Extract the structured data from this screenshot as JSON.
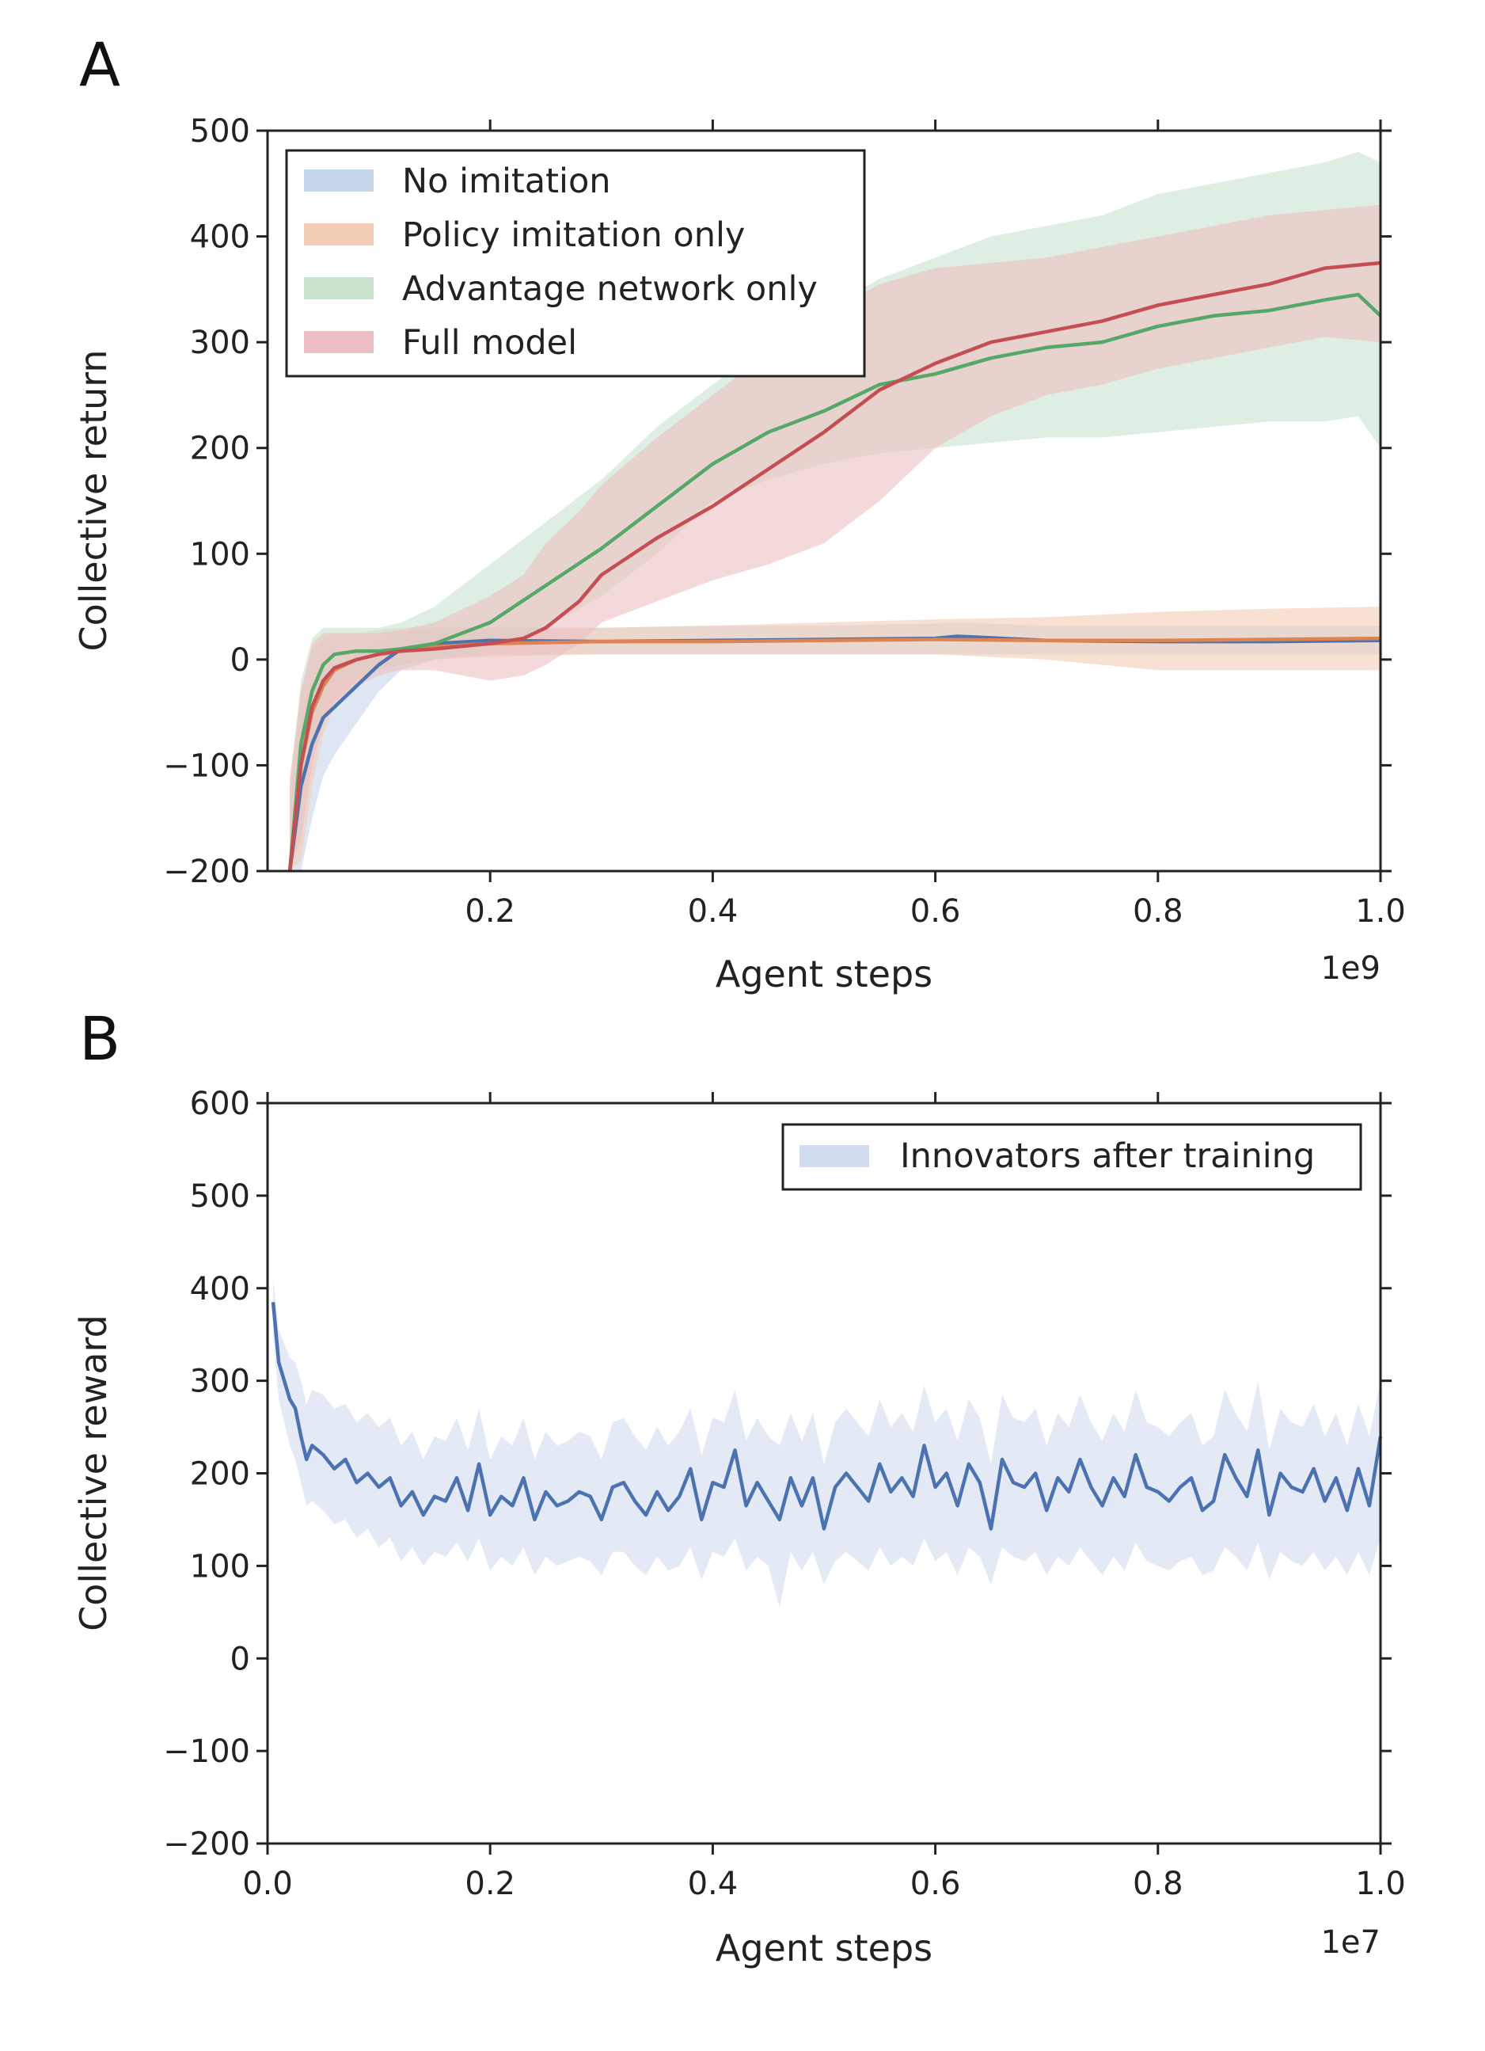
{
  "chart_data": [
    {
      "panel": "A",
      "type": "line",
      "xlabel": "Agent steps",
      "ylabel": "Collective return",
      "x_scale_label": "1e9",
      "xlim": [
        0.0,
        1.0
      ],
      "ylim": [
        -200,
        500
      ],
      "xticks": [
        0.2,
        0.4,
        0.6,
        0.8,
        1.0
      ],
      "xtick_labels": [
        "0.2",
        "0.4",
        "0.6",
        "0.8",
        "1.0"
      ],
      "yticks": [
        -200,
        -100,
        0,
        100,
        200,
        300,
        400,
        500
      ],
      "ytick_labels": [
        "−200",
        "−100",
        "0",
        "100",
        "200",
        "300",
        "400",
        "500"
      ],
      "grid": false,
      "legend_position": "top-left",
      "series": [
        {
          "name": "No imitation",
          "color": "#4c72b0",
          "band_color": "#c6d6ea",
          "x": [
            0.02,
            0.03,
            0.04,
            0.05,
            0.06,
            0.07,
            0.08,
            0.09,
            0.1,
            0.12,
            0.15,
            0.2,
            0.3,
            0.4,
            0.5,
            0.6,
            0.62,
            0.7,
            0.8,
            0.9,
            1.0
          ],
          "y": [
            -200,
            -120,
            -80,
            -55,
            -45,
            -35,
            -25,
            -15,
            -5,
            10,
            15,
            18,
            17,
            18,
            19,
            20,
            22,
            18,
            17,
            17,
            18
          ],
          "lower": [
            -260,
            -200,
            -150,
            -110,
            -90,
            -75,
            -60,
            -45,
            -30,
            -10,
            0,
            5,
            5,
            5,
            5,
            5,
            5,
            5,
            5,
            5,
            5
          ],
          "upper": [
            -140,
            -50,
            -20,
            -10,
            -5,
            0,
            5,
            10,
            15,
            25,
            30,
            30,
            30,
            32,
            32,
            34,
            35,
            32,
            32,
            32,
            32
          ]
        },
        {
          "name": "Policy imitation only",
          "color": "#dd8452",
          "band_color": "#f3cdb4",
          "x": [
            0.02,
            0.03,
            0.04,
            0.05,
            0.06,
            0.07,
            0.08,
            0.1,
            0.12,
            0.15,
            0.2,
            0.3,
            0.4,
            0.5,
            0.6,
            0.7,
            0.8,
            0.9,
            1.0
          ],
          "y": [
            -200,
            -100,
            -50,
            -25,
            -10,
            -5,
            0,
            5,
            10,
            12,
            15,
            17,
            17,
            18,
            19,
            18,
            18,
            19,
            20
          ],
          "lower": [
            -290,
            -190,
            -120,
            -70,
            -45,
            -30,
            -20,
            -10,
            -5,
            0,
            3,
            5,
            5,
            5,
            5,
            0,
            -10,
            -10,
            -10
          ],
          "upper": [
            -110,
            -30,
            10,
            20,
            25,
            25,
            25,
            28,
            30,
            30,
            30,
            30,
            32,
            35,
            38,
            40,
            45,
            48,
            50
          ]
        },
        {
          "name": "Advantage network only",
          "color": "#55a868",
          "band_color": "#c9e3cf",
          "x": [
            0.02,
            0.03,
            0.04,
            0.05,
            0.06,
            0.08,
            0.1,
            0.12,
            0.15,
            0.2,
            0.25,
            0.3,
            0.35,
            0.4,
            0.45,
            0.5,
            0.55,
            0.6,
            0.65,
            0.7,
            0.75,
            0.8,
            0.85,
            0.9,
            0.95,
            0.98,
            1.0
          ],
          "y": [
            -200,
            -80,
            -30,
            -5,
            5,
            8,
            8,
            10,
            15,
            35,
            70,
            105,
            145,
            185,
            215,
            235,
            260,
            270,
            285,
            295,
            300,
            315,
            325,
            330,
            340,
            345,
            325
          ],
          "lower": [
            -280,
            -150,
            -80,
            -40,
            -20,
            -15,
            -10,
            -5,
            0,
            10,
            30,
            60,
            100,
            150,
            170,
            185,
            195,
            200,
            205,
            210,
            210,
            215,
            220,
            225,
            225,
            230,
            200
          ],
          "upper": [
            -120,
            -20,
            20,
            30,
            30,
            30,
            30,
            35,
            50,
            90,
            130,
            170,
            220,
            260,
            300,
            330,
            360,
            380,
            400,
            410,
            420,
            440,
            450,
            460,
            470,
            480,
            470
          ]
        },
        {
          "name": "Full model",
          "color": "#c44e52",
          "band_color": "#ecc0c2",
          "x": [
            0.02,
            0.03,
            0.04,
            0.05,
            0.06,
            0.08,
            0.1,
            0.12,
            0.15,
            0.2,
            0.23,
            0.25,
            0.28,
            0.3,
            0.35,
            0.4,
            0.45,
            0.5,
            0.55,
            0.6,
            0.65,
            0.7,
            0.75,
            0.8,
            0.85,
            0.9,
            0.95,
            1.0
          ],
          "y": [
            -200,
            -100,
            -45,
            -20,
            -8,
            0,
            5,
            8,
            10,
            15,
            20,
            30,
            55,
            80,
            115,
            145,
            180,
            215,
            255,
            280,
            300,
            310,
            320,
            335,
            345,
            355,
            370,
            375
          ],
          "lower": [
            -280,
            -170,
            -100,
            -60,
            -40,
            -25,
            -15,
            -10,
            -10,
            -20,
            -15,
            -5,
            15,
            35,
            55,
            75,
            90,
            110,
            150,
            200,
            230,
            250,
            260,
            275,
            285,
            295,
            305,
            300
          ],
          "upper": [
            -120,
            -30,
            15,
            25,
            25,
            25,
            25,
            28,
            35,
            60,
            80,
            110,
            140,
            165,
            210,
            250,
            290,
            325,
            355,
            370,
            375,
            380,
            390,
            400,
            410,
            420,
            425,
            430
          ]
        }
      ]
    },
    {
      "panel": "B",
      "type": "line",
      "xlabel": "Agent steps",
      "ylabel": "Collective reward",
      "x_scale_label": "1e7",
      "xlim": [
        0.0,
        1.0
      ],
      "ylim": [
        -200,
        600
      ],
      "xticks": [
        0.0,
        0.2,
        0.4,
        0.6,
        0.8,
        1.0
      ],
      "xtick_labels": [
        "0.0",
        "0.2",
        "0.4",
        "0.6",
        "0.8",
        "1.0"
      ],
      "yticks": [
        -200,
        -100,
        0,
        100,
        200,
        300,
        400,
        500,
        600
      ],
      "ytick_labels": [
        "−200",
        "−100",
        "0",
        "100",
        "200",
        "300",
        "400",
        "500",
        "600"
      ],
      "grid": false,
      "legend_position": "top-right",
      "series": [
        {
          "name": "Innovators after training",
          "color": "#4c72b0",
          "band_color": "#d2dcef",
          "x": [
            0.005,
            0.01,
            0.015,
            0.02,
            0.025,
            0.03,
            0.035,
            0.04,
            0.05,
            0.06,
            0.07,
            0.08,
            0.09,
            0.1,
            0.11,
            0.12,
            0.13,
            0.14,
            0.15,
            0.16,
            0.17,
            0.18,
            0.19,
            0.2,
            0.21,
            0.22,
            0.23,
            0.24,
            0.25,
            0.26,
            0.27,
            0.28,
            0.29,
            0.3,
            0.31,
            0.32,
            0.33,
            0.34,
            0.35,
            0.36,
            0.37,
            0.38,
            0.39,
            0.4,
            0.41,
            0.42,
            0.43,
            0.44,
            0.45,
            0.46,
            0.47,
            0.48,
            0.49,
            0.5,
            0.51,
            0.52,
            0.53,
            0.54,
            0.55,
            0.56,
            0.57,
            0.58,
            0.59,
            0.6,
            0.61,
            0.62,
            0.63,
            0.64,
            0.65,
            0.66,
            0.67,
            0.68,
            0.69,
            0.7,
            0.71,
            0.72,
            0.73,
            0.74,
            0.75,
            0.76,
            0.77,
            0.78,
            0.79,
            0.8,
            0.81,
            0.82,
            0.83,
            0.84,
            0.85,
            0.86,
            0.87,
            0.88,
            0.89,
            0.9,
            0.91,
            0.92,
            0.93,
            0.94,
            0.95,
            0.96,
            0.97,
            0.98,
            0.99,
            1.0
          ],
          "y": [
            385,
            320,
            300,
            280,
            270,
            240,
            215,
            230,
            220,
            205,
            215,
            190,
            200,
            185,
            195,
            165,
            180,
            155,
            175,
            170,
            195,
            160,
            210,
            155,
            175,
            165,
            195,
            150,
            180,
            165,
            170,
            180,
            175,
            150,
            185,
            190,
            170,
            155,
            180,
            160,
            175,
            205,
            150,
            190,
            185,
            225,
            165,
            190,
            170,
            150,
            195,
            165,
            195,
            140,
            185,
            200,
            185,
            170,
            210,
            180,
            195,
            175,
            230,
            185,
            200,
            165,
            210,
            190,
            140,
            215,
            190,
            185,
            200,
            160,
            195,
            180,
            215,
            185,
            165,
            195,
            175,
            220,
            185,
            180,
            170,
            185,
            195,
            160,
            170,
            220,
            195,
            175,
            225,
            155,
            200,
            185,
            180,
            205,
            170,
            195,
            160,
            205,
            165,
            240
          ],
          "lower": [
            350,
            280,
            255,
            230,
            215,
            190,
            165,
            170,
            160,
            145,
            150,
            130,
            140,
            120,
            130,
            105,
            120,
            100,
            115,
            110,
            125,
            105,
            130,
            95,
            110,
            100,
            120,
            90,
            110,
            100,
            105,
            110,
            105,
            90,
            115,
            115,
            100,
            90,
            110,
            95,
            100,
            120,
            85,
            115,
            110,
            130,
            95,
            110,
            100,
            55,
            115,
            95,
            115,
            80,
            105,
            115,
            105,
            95,
            120,
            100,
            110,
            100,
            130,
            105,
            115,
            90,
            120,
            110,
            80,
            120,
            110,
            105,
            115,
            90,
            110,
            100,
            120,
            105,
            90,
            110,
            95,
            125,
            105,
            100,
            95,
            105,
            110,
            90,
            95,
            120,
            110,
            95,
            125,
            85,
            115,
            105,
            100,
            115,
            95,
            110,
            90,
            115,
            90,
            130
          ],
          "upper": [
            410,
            355,
            340,
            325,
            320,
            300,
            275,
            290,
            285,
            270,
            275,
            255,
            265,
            250,
            260,
            230,
            245,
            215,
            240,
            235,
            260,
            225,
            270,
            215,
            240,
            230,
            260,
            215,
            245,
            230,
            235,
            245,
            240,
            215,
            255,
            260,
            240,
            225,
            250,
            230,
            245,
            270,
            220,
            260,
            255,
            290,
            235,
            260,
            240,
            230,
            265,
            235,
            265,
            210,
            255,
            270,
            255,
            240,
            280,
            250,
            265,
            245,
            295,
            255,
            270,
            235,
            280,
            260,
            210,
            285,
            260,
            255,
            270,
            230,
            265,
            250,
            285,
            255,
            235,
            265,
            245,
            290,
            255,
            250,
            240,
            255,
            265,
            230,
            240,
            290,
            265,
            245,
            300,
            225,
            270,
            255,
            250,
            275,
            240,
            265,
            230,
            275,
            240,
            300
          ]
        }
      ]
    }
  ]
}
